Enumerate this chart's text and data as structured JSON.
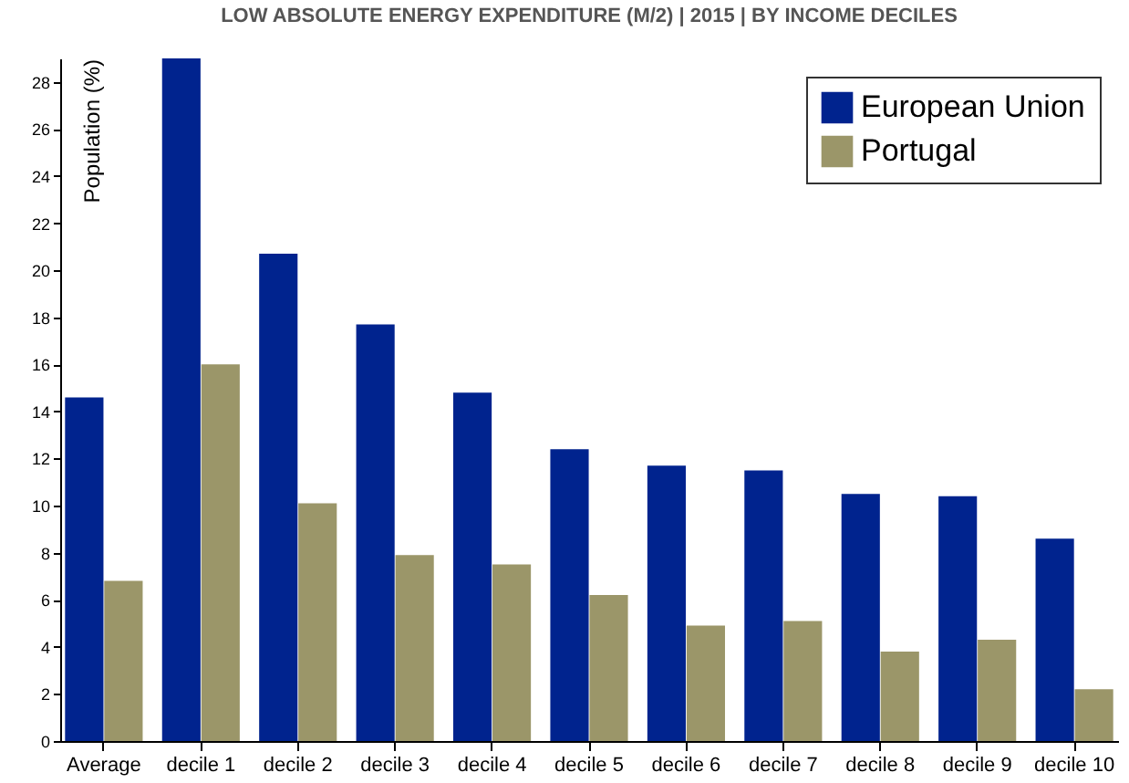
{
  "chart_data": {
    "type": "bar",
    "title": "LOW ABSOLUTE ENERGY EXPENDITURE (M/2) | 2015 | BY INCOME DECILES",
    "ylabel": "Population (%)",
    "categories": [
      "Average",
      "decile 1",
      "decile 2",
      "decile 3",
      "decile 4",
      "decile 5",
      "decile 6",
      "decile 7",
      "decile 8",
      "decile 9",
      "decile 10"
    ],
    "series": [
      {
        "name": "European Union",
        "color": "#00238e",
        "values": [
          14.6,
          29,
          20.7,
          17.7,
          14.8,
          12.4,
          11.7,
          11.5,
          10.5,
          10.4,
          8.6
        ]
      },
      {
        "name": "Portugal",
        "color": "#9b9669",
        "values": [
          6.8,
          16.0,
          10.1,
          7.9,
          7.5,
          6.2,
          4.9,
          5.1,
          3.8,
          4.3,
          2.2
        ]
      }
    ],
    "ylim": [
      0,
      29
    ],
    "yticks": [
      0,
      2,
      4,
      6,
      8,
      10,
      12,
      14,
      16,
      18,
      20,
      22,
      24,
      26,
      28
    ],
    "grid": false,
    "legend": "top right"
  }
}
